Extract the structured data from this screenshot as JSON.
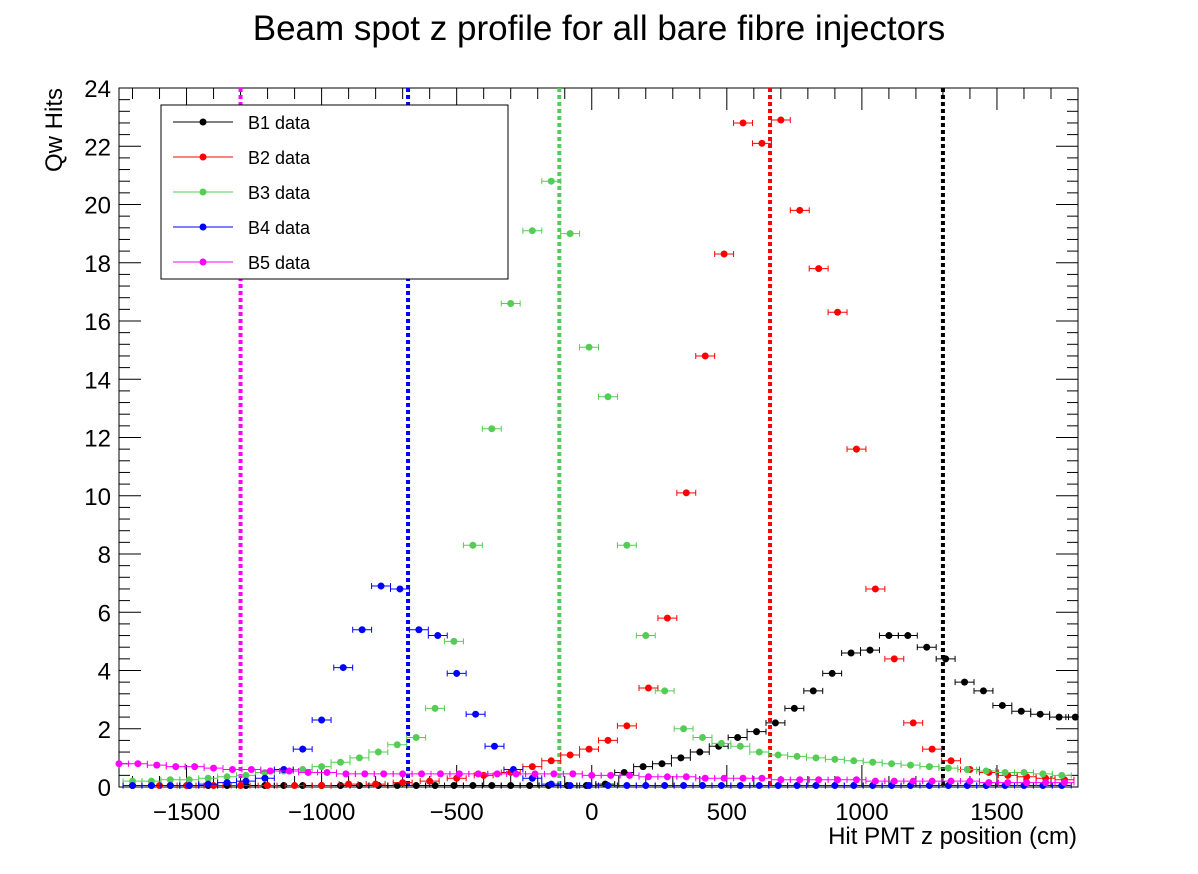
{
  "chart_data": {
    "type": "scatter",
    "title": "Beam spot z profile for all bare fibre injectors",
    "xlabel": "Hit PMT z position (cm)",
    "ylabel": "Qw Hits",
    "xlim": [
      -1750,
      1800
    ],
    "ylim": [
      0,
      24
    ],
    "x_ticks": [
      -1500,
      -1000,
      -500,
      0,
      500,
      1000,
      1500
    ],
    "y_ticks": [
      0,
      2,
      4,
      6,
      8,
      10,
      12,
      14,
      16,
      18,
      20,
      22,
      24
    ],
    "grid": false,
    "legend_position": "top-left",
    "x_error": 35,
    "series": [
      {
        "name": "B1 data",
        "color": "#000000",
        "x": [
          -1700,
          -1630,
          -1560,
          -1490,
          -1420,
          -1350,
          -1280,
          -1210,
          -1140,
          -1070,
          -1000,
          -930,
          -860,
          -790,
          -720,
          -650,
          -580,
          -510,
          -440,
          -370,
          -300,
          -230,
          -160,
          -90,
          -20,
          50,
          120,
          190,
          260,
          330,
          400,
          470,
          540,
          610,
          680,
          750,
          820,
          890,
          960,
          1030,
          1100,
          1170,
          1240,
          1310,
          1380,
          1450,
          1520,
          1590,
          1660,
          1730,
          1790
        ],
        "y": [
          0.05,
          0.05,
          0.05,
          0.05,
          0.05,
          0.05,
          0.05,
          0.05,
          0.05,
          0.05,
          0.05,
          0.05,
          0.05,
          0.05,
          0.05,
          0.05,
          0.05,
          0.05,
          0.05,
          0.05,
          0.05,
          0.05,
          0.05,
          0.05,
          0.05,
          0.1,
          0.5,
          0.7,
          0.8,
          1.0,
          1.2,
          1.4,
          1.7,
          1.9,
          2.2,
          2.7,
          3.3,
          3.9,
          4.6,
          4.7,
          5.2,
          5.2,
          4.8,
          4.4,
          3.6,
          3.3,
          2.8,
          2.6,
          2.5,
          2.4,
          2.4
        ],
        "vline": 1300
      },
      {
        "name": "B2 data",
        "color": "#ff0000",
        "x": [
          -1700,
          -1600,
          -1500,
          -1400,
          -1300,
          -1200,
          -1100,
          -1000,
          -900,
          -800,
          -700,
          -600,
          -500,
          -400,
          -300,
          -220,
          -150,
          -80,
          -10,
          60,
          130,
          210,
          280,
          350,
          420,
          490,
          560,
          630,
          700,
          770,
          840,
          910,
          980,
          1050,
          1120,
          1190,
          1260,
          1330,
          1400,
          1470,
          1540,
          1610,
          1680,
          1750
        ],
        "y": [
          0.05,
          0.05,
          0.05,
          0.05,
          0.05,
          0.05,
          0.05,
          0.05,
          0.1,
          0.1,
          0.15,
          0.2,
          0.3,
          0.4,
          0.5,
          0.7,
          0.9,
          1.1,
          1.3,
          1.6,
          2.1,
          3.4,
          5.8,
          10.1,
          14.8,
          18.3,
          22.8,
          22.1,
          22.9,
          19.8,
          17.8,
          16.3,
          11.6,
          6.8,
          4.4,
          2.2,
          1.3,
          0.9,
          0.6,
          0.5,
          0.4,
          0.35,
          0.3,
          0.25
        ],
        "vline": 660
      },
      {
        "name": "B3 data",
        "color": "#55cc55",
        "x": [
          -1700,
          -1630,
          -1560,
          -1490,
          -1420,
          -1350,
          -1280,
          -1210,
          -1140,
          -1070,
          -1000,
          -930,
          -860,
          -790,
          -720,
          -650,
          -580,
          -510,
          -440,
          -370,
          -300,
          -220,
          -150,
          -80,
          -10,
          60,
          130,
          200,
          270,
          340,
          410,
          480,
          550,
          620,
          690,
          760,
          830,
          900,
          970,
          1040,
          1110,
          1180,
          1250,
          1320,
          1390,
          1460,
          1530,
          1600,
          1670,
          1740
        ],
        "y": [
          0.2,
          0.2,
          0.25,
          0.25,
          0.3,
          0.35,
          0.4,
          0.5,
          0.55,
          0.6,
          0.7,
          0.85,
          1.0,
          1.2,
          1.45,
          1.7,
          2.7,
          5.0,
          8.3,
          12.3,
          16.6,
          19.1,
          20.8,
          19.0,
          15.1,
          13.4,
          8.3,
          5.2,
          3.3,
          2.0,
          1.7,
          1.5,
          1.4,
          1.2,
          1.1,
          1.05,
          1.0,
          0.95,
          0.9,
          0.85,
          0.8,
          0.75,
          0.7,
          0.65,
          0.6,
          0.55,
          0.5,
          0.5,
          0.45,
          0.4
        ],
        "vline": -120
      },
      {
        "name": "B4 data",
        "color": "#0000ff",
        "x": [
          -1700,
          -1630,
          -1560,
          -1490,
          -1420,
          -1350,
          -1280,
          -1210,
          -1140,
          -1070,
          -1000,
          -920,
          -850,
          -780,
          -710,
          -640,
          -570,
          -500,
          -430,
          -360,
          -290,
          -220,
          -150,
          -80,
          -10,
          60,
          130,
          200,
          270,
          340,
          410,
          480,
          550,
          620,
          690,
          760,
          830,
          900,
          970,
          1040,
          1110,
          1180,
          1250,
          1320,
          1390,
          1460,
          1530,
          1600,
          1670,
          1740
        ],
        "y": [
          0.05,
          0.05,
          0.05,
          0.05,
          0.1,
          0.15,
          0.2,
          0.3,
          0.6,
          1.3,
          2.3,
          4.1,
          5.4,
          6.9,
          6.8,
          5.4,
          5.2,
          3.9,
          2.5,
          1.4,
          0.6,
          0.3,
          0.1,
          0.05,
          0.05,
          0.05,
          0.05,
          0.05,
          0.05,
          0.05,
          0.05,
          0.05,
          0.05,
          0.05,
          0.05,
          0.05,
          0.05,
          0.05,
          0.05,
          0.05,
          0.05,
          0.05,
          0.05,
          0.05,
          0.05,
          0.05,
          0.05,
          0.05,
          0.05,
          0.05
        ],
        "vline": -680
      },
      {
        "name": "B5 data",
        "color": "#ff00ff",
        "x": [
          -1750,
          -1680,
          -1610,
          -1540,
          -1470,
          -1400,
          -1330,
          -1260,
          -1190,
          -1120,
          -1050,
          -980,
          -910,
          -840,
          -770,
          -700,
          -630,
          -560,
          -490,
          -420,
          -350,
          -280,
          -210,
          -140,
          -70,
          0,
          70,
          140,
          210,
          280,
          350,
          420,
          490,
          560,
          630,
          700,
          770,
          840,
          910,
          980,
          1050,
          1120,
          1190,
          1260,
          1330,
          1400,
          1470,
          1540,
          1610,
          1680,
          1750
        ],
        "y": [
          0.8,
          0.8,
          0.75,
          0.7,
          0.7,
          0.65,
          0.6,
          0.6,
          0.55,
          0.55,
          0.5,
          0.5,
          0.45,
          0.45,
          0.45,
          0.45,
          0.45,
          0.45,
          0.45,
          0.45,
          0.45,
          0.45,
          0.45,
          0.45,
          0.45,
          0.4,
          0.4,
          0.4,
          0.35,
          0.35,
          0.35,
          0.3,
          0.3,
          0.3,
          0.3,
          0.25,
          0.25,
          0.25,
          0.25,
          0.25,
          0.2,
          0.2,
          0.2,
          0.2,
          0.2,
          0.2,
          0.15,
          0.15,
          0.15,
          0.15,
          0.15
        ],
        "vline": -1300
      }
    ]
  }
}
